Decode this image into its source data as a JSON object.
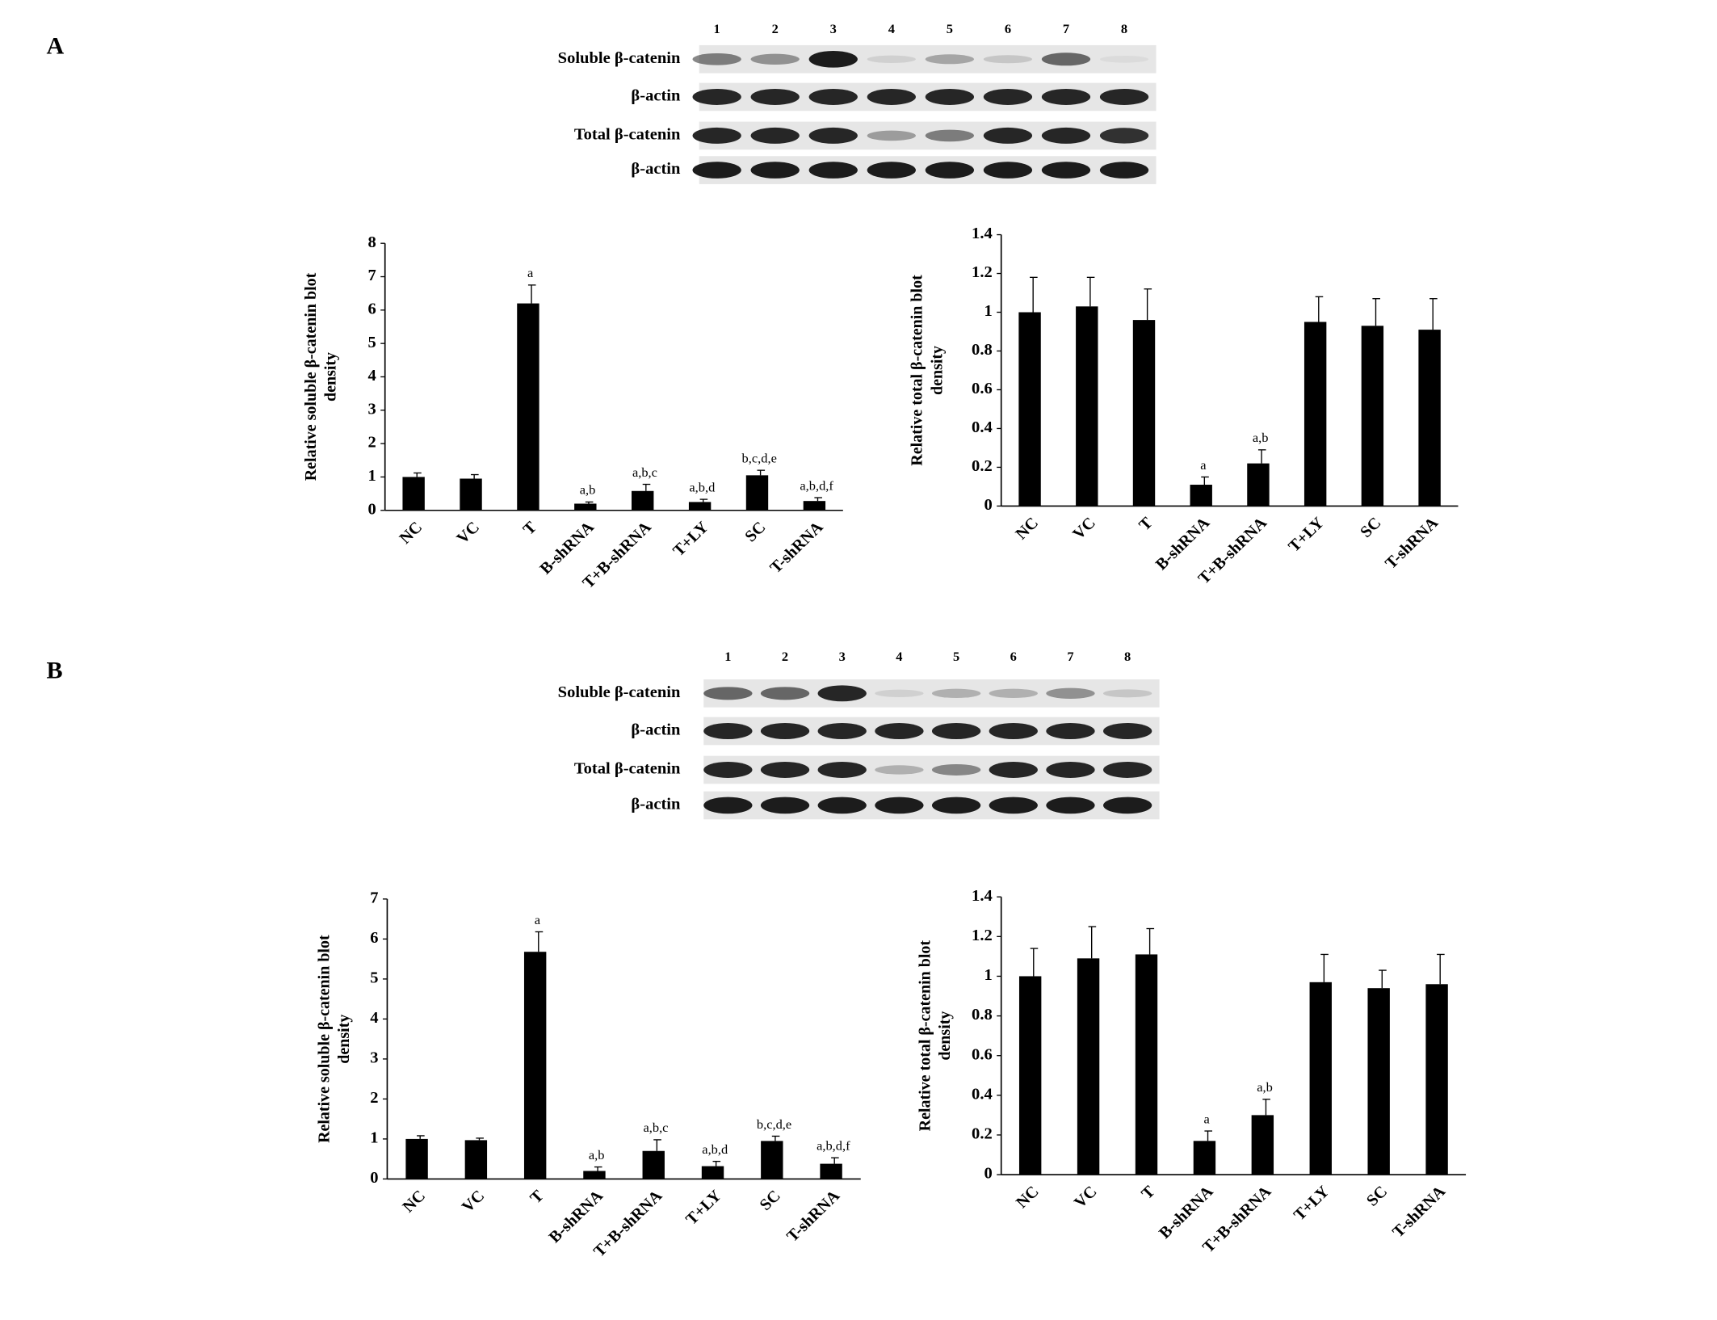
{
  "panels": [
    {
      "label": "A",
      "lanes": [
        "1",
        "2",
        "3",
        "4",
        "5",
        "6",
        "7",
        "8"
      ],
      "rows": [
        "Soluble β-catenin",
        "β-actin",
        "Total β-catenin",
        "β-actin"
      ]
    },
    {
      "label": "B",
      "lanes": [
        "1",
        "2",
        "3",
        "4",
        "5",
        "6",
        "7",
        "8"
      ],
      "rows": [
        "Soluble β-catenin",
        "β-actin",
        "Total β-catenin",
        "β-actin"
      ]
    }
  ],
  "chart_data": [
    {
      "type": "bar",
      "ylabel": [
        "Relative soluble β-catenin blot",
        "density"
      ],
      "color": "#000000",
      "categories": [
        "NC",
        "VC",
        "T",
        "B-shRNA",
        "T+B-shRNA",
        "T+LY",
        "SC",
        "T-shRNA"
      ],
      "values": [
        1.0,
        0.95,
        6.2,
        0.2,
        0.58,
        0.25,
        1.05,
        0.28
      ],
      "errors": [
        0.12,
        0.12,
        0.55,
        0.05,
        0.2,
        0.08,
        0.15,
        0.1
      ],
      "annotations": [
        null,
        null,
        "a",
        "a,b",
        "a,b,c",
        "a,b,d",
        "b,c,d,e",
        "a,b,d,f"
      ],
      "ylim": [
        0,
        8
      ],
      "yticks": [
        0,
        1,
        2,
        3,
        4,
        5,
        6,
        7,
        8
      ]
    },
    {
      "type": "bar",
      "ylabel": [
        "Relative total β-catenin blot",
        "density"
      ],
      "color": "#000000",
      "categories": [
        "NC",
        "VC",
        "T",
        "B-shRNA",
        "T+B-shRNA",
        "T+LY",
        "SC",
        "T-shRNA"
      ],
      "values": [
        1.0,
        1.03,
        0.96,
        0.11,
        0.22,
        0.95,
        0.93,
        0.91
      ],
      "errors": [
        0.18,
        0.15,
        0.16,
        0.04,
        0.07,
        0.13,
        0.14,
        0.16
      ],
      "annotations": [
        null,
        null,
        null,
        "a",
        "a,b",
        null,
        null,
        null
      ],
      "ylim": [
        0,
        1.4
      ],
      "yticks": [
        0,
        0.2,
        0.4,
        0.6,
        0.8,
        1,
        1.2,
        1.4
      ]
    },
    {
      "type": "bar",
      "ylabel": [
        "Relative soluble β-catenin blot",
        "density"
      ],
      "color": "#000000",
      "categories": [
        "NC",
        "VC",
        "T",
        "B-shRNA",
        "T+B-shRNA",
        "T+LY",
        "SC",
        "T-shRNA"
      ],
      "values": [
        1.0,
        0.97,
        5.68,
        0.2,
        0.7,
        0.32,
        0.95,
        0.38
      ],
      "errors": [
        0.08,
        0.05,
        0.5,
        0.1,
        0.28,
        0.12,
        0.12,
        0.15
      ],
      "annotations": [
        null,
        null,
        "a",
        "a,b",
        "a,b,c",
        "a,b,d",
        "b,c,d,e",
        "a,b,d,f"
      ],
      "ylim": [
        0,
        7
      ],
      "yticks": [
        0,
        1,
        2,
        3,
        4,
        5,
        6,
        7
      ]
    },
    {
      "type": "bar",
      "ylabel": [
        "Relative total β-catenin blot",
        "density"
      ],
      "color": "#000000",
      "categories": [
        "NC",
        "VC",
        "T",
        "B-shRNA",
        "T+B-shRNA",
        "T+LY",
        "SC",
        "T-shRNA"
      ],
      "values": [
        1.0,
        1.09,
        1.11,
        0.17,
        0.3,
        0.97,
        0.94,
        0.96
      ],
      "errors": [
        0.14,
        0.16,
        0.13,
        0.05,
        0.08,
        0.14,
        0.09,
        0.15
      ],
      "annotations": [
        null,
        null,
        null,
        "a",
        "a,b",
        null,
        null,
        null
      ],
      "ylim": [
        0,
        1.4
      ],
      "yticks": [
        0,
        0.2,
        0.4,
        0.6,
        0.8,
        1,
        1.2,
        1.4
      ]
    }
  ]
}
